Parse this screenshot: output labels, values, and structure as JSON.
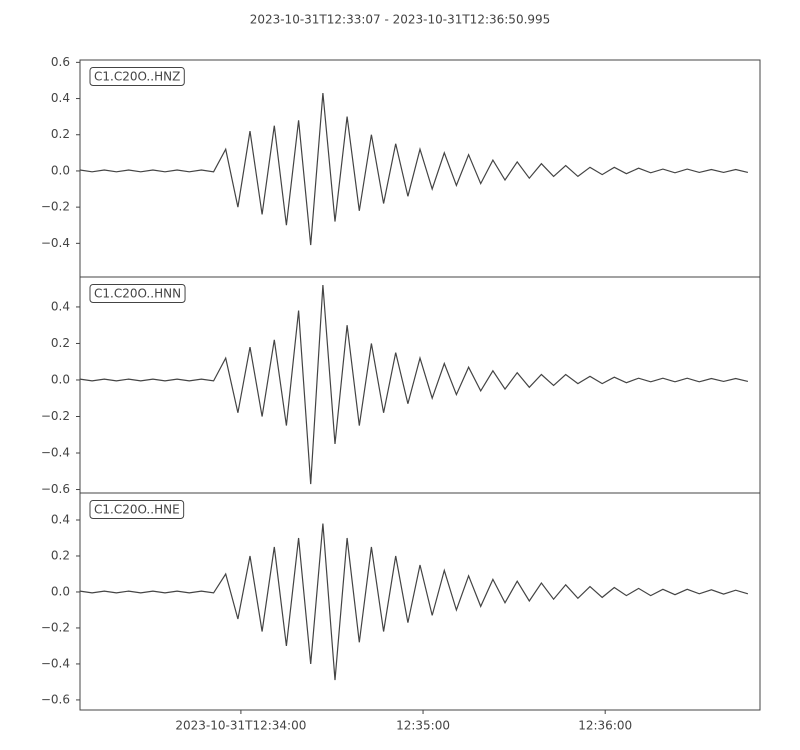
{
  "chart_data": [
    {
      "type": "line",
      "title": "2023-10-31T12:33:07  -  2023-10-31T12:36:50.995",
      "annotation": "C1.C20O..HNZ",
      "xlim": [
        "2023-10-31T12:33:07",
        "2023-10-31T12:36:50.995"
      ],
      "ylim": [
        -0.586,
        0.613
      ],
      "yticks": [
        {
          "value": -0.4,
          "label": "−0.4"
        },
        {
          "value": -0.2,
          "label": "−0.2"
        },
        {
          "value": 0,
          "label": "0.0"
        },
        0.2,
        0.4,
        0.6
      ],
      "x": [
        "2023-10-31T12:33:07",
        "2023-10-31T12:33:11",
        "2023-10-31T12:33:15",
        "2023-10-31T12:33:19",
        "2023-10-31T12:33:23",
        "2023-10-31T12:33:27",
        "2023-10-31T12:33:31",
        "2023-10-31T12:33:35",
        "2023-10-31T12:33:39",
        "2023-10-31T12:33:43",
        "2023-10-31T12:33:47",
        "2023-10-31T12:33:51",
        "2023-10-31T12:33:55",
        "2023-10-31T12:33:59",
        "2023-10-31T12:34:03",
        "2023-10-31T12:34:07",
        "2023-10-31T12:34:11",
        "2023-10-31T12:34:15",
        "2023-10-31T12:34:19",
        "2023-10-31T12:34:23",
        "2023-10-31T12:34:27",
        "2023-10-31T12:34:31",
        "2023-10-31T12:34:35",
        "2023-10-31T12:34:39",
        "2023-10-31T12:34:43",
        "2023-10-31T12:34:47",
        "2023-10-31T12:34:51",
        "2023-10-31T12:34:55",
        "2023-10-31T12:34:59",
        "2023-10-31T12:35:03",
        "2023-10-31T12:35:07",
        "2023-10-31T12:35:11",
        "2023-10-31T12:35:15",
        "2023-10-31T12:35:19",
        "2023-10-31T12:35:23",
        "2023-10-31T12:35:27",
        "2023-10-31T12:35:31",
        "2023-10-31T12:35:35",
        "2023-10-31T12:35:39",
        "2023-10-31T12:35:43",
        "2023-10-31T12:35:47",
        "2023-10-31T12:35:51",
        "2023-10-31T12:35:55",
        "2023-10-31T12:35:59",
        "2023-10-31T12:36:03",
        "2023-10-31T12:36:07",
        "2023-10-31T12:36:11",
        "2023-10-31T12:36:15",
        "2023-10-31T12:36:19",
        "2023-10-31T12:36:23",
        "2023-10-31T12:36:27",
        "2023-10-31T12:36:31",
        "2023-10-31T12:36:35",
        "2023-10-31T12:36:39",
        "2023-10-31T12:36:43",
        "2023-10-31T12:36:47"
      ],
      "series": [
        {
          "color": "#444444",
          "values": [
            0.005,
            -0.005,
            0.005,
            -0.005,
            0.005,
            -0.005,
            0.005,
            -0.005,
            0.005,
            -0.005,
            0.005,
            -0.005,
            0.12,
            -0.2,
            0.22,
            -0.24,
            0.25,
            -0.3,
            0.28,
            -0.41,
            0.43,
            -0.28,
            0.3,
            -0.22,
            0.2,
            -0.18,
            0.15,
            -0.14,
            0.12,
            -0.1,
            0.1,
            -0.08,
            0.09,
            -0.07,
            0.06,
            -0.05,
            0.05,
            -0.04,
            0.04,
            -0.03,
            0.03,
            -0.03,
            0.02,
            -0.02,
            0.02,
            -0.015,
            0.015,
            -0.01,
            0.01,
            -0.01,
            0.01,
            -0.008,
            0.008,
            -0.008,
            0.008,
            -0.008
          ]
        }
      ]
    },
    {
      "type": "line",
      "annotation": "C1.C20O..HNN",
      "xlim": [
        "2023-10-31T12:33:07",
        "2023-10-31T12:36:50.995"
      ],
      "ylim": [
        -0.619,
        0.564
      ],
      "yticks": [
        {
          "value": -0.6,
          "label": "−0.6"
        },
        {
          "value": -0.4,
          "label": "−0.4"
        },
        {
          "value": -0.2,
          "label": "−0.2"
        },
        {
          "value": 0,
          "label": "0.0"
        },
        0.2,
        0.4
      ],
      "x": [
        "2023-10-31T12:33:07",
        "2023-10-31T12:33:11",
        "2023-10-31T12:33:15",
        "2023-10-31T12:33:19",
        "2023-10-31T12:33:23",
        "2023-10-31T12:33:27",
        "2023-10-31T12:33:31",
        "2023-10-31T12:33:35",
        "2023-10-31T12:33:39",
        "2023-10-31T12:33:43",
        "2023-10-31T12:33:47",
        "2023-10-31T12:33:51",
        "2023-10-31T12:33:55",
        "2023-10-31T12:33:59",
        "2023-10-31T12:34:03",
        "2023-10-31T12:34:07",
        "2023-10-31T12:34:11",
        "2023-10-31T12:34:15",
        "2023-10-31T12:34:19",
        "2023-10-31T12:34:23",
        "2023-10-31T12:34:27",
        "2023-10-31T12:34:31",
        "2023-10-31T12:34:35",
        "2023-10-31T12:34:39",
        "2023-10-31T12:34:43",
        "2023-10-31T12:34:47",
        "2023-10-31T12:34:51",
        "2023-10-31T12:34:55",
        "2023-10-31T12:34:59",
        "2023-10-31T12:35:03",
        "2023-10-31T12:35:07",
        "2023-10-31T12:35:11",
        "2023-10-31T12:35:15",
        "2023-10-31T12:35:19",
        "2023-10-31T12:35:23",
        "2023-10-31T12:35:27",
        "2023-10-31T12:35:31",
        "2023-10-31T12:35:35",
        "2023-10-31T12:35:39",
        "2023-10-31T12:35:43",
        "2023-10-31T12:35:47",
        "2023-10-31T12:35:51",
        "2023-10-31T12:35:55",
        "2023-10-31T12:35:59",
        "2023-10-31T12:36:03",
        "2023-10-31T12:36:07",
        "2023-10-31T12:36:11",
        "2023-10-31T12:36:15",
        "2023-10-31T12:36:19",
        "2023-10-31T12:36:23",
        "2023-10-31T12:36:27",
        "2023-10-31T12:36:31",
        "2023-10-31T12:36:35",
        "2023-10-31T12:36:39",
        "2023-10-31T12:36:43",
        "2023-10-31T12:36:47"
      ],
      "series": [
        {
          "color": "#444444",
          "values": [
            0.005,
            -0.005,
            0.005,
            -0.005,
            0.005,
            -0.005,
            0.005,
            -0.005,
            0.005,
            -0.005,
            0.005,
            -0.005,
            0.12,
            -0.18,
            0.18,
            -0.2,
            0.22,
            -0.25,
            0.38,
            -0.57,
            0.52,
            -0.35,
            0.3,
            -0.25,
            0.2,
            -0.18,
            0.15,
            -0.13,
            0.12,
            -0.1,
            0.09,
            -0.08,
            0.07,
            -0.06,
            0.05,
            -0.05,
            0.04,
            -0.04,
            0.03,
            -0.03,
            0.03,
            -0.02,
            0.02,
            -0.02,
            0.015,
            -0.015,
            0.01,
            -0.01,
            0.01,
            -0.01,
            0.01,
            -0.01,
            0.008,
            -0.008,
            0.008,
            -0.008
          ]
        }
      ]
    },
    {
      "type": "line",
      "annotation": "C1.C20O..HNE",
      "xlim": [
        "2023-10-31T12:33:07",
        "2023-10-31T12:36:50.995"
      ],
      "xticks": [
        "2023-10-31T12:34:00",
        {
          "value": "2023-10-31T12:35:00",
          "label": "12:35:00"
        },
        {
          "value": "2023-10-31T12:36:00",
          "label": "12:36:00"
        }
      ],
      "ylim": [
        -0.656,
        0.55
      ],
      "yticks": [
        {
          "value": -0.6,
          "label": "−0.6"
        },
        {
          "value": -0.4,
          "label": "−0.4"
        },
        {
          "value": -0.2,
          "label": "−0.2"
        },
        {
          "value": 0,
          "label": "0.0"
        },
        0.2,
        0.4
      ],
      "x": [
        "2023-10-31T12:33:07",
        "2023-10-31T12:33:11",
        "2023-10-31T12:33:15",
        "2023-10-31T12:33:19",
        "2023-10-31T12:33:23",
        "2023-10-31T12:33:27",
        "2023-10-31T12:33:31",
        "2023-10-31T12:33:35",
        "2023-10-31T12:33:39",
        "2023-10-31T12:33:43",
        "2023-10-31T12:33:47",
        "2023-10-31T12:33:51",
        "2023-10-31T12:33:55",
        "2023-10-31T12:33:59",
        "2023-10-31T12:34:03",
        "2023-10-31T12:34:07",
        "2023-10-31T12:34:11",
        "2023-10-31T12:34:15",
        "2023-10-31T12:34:19",
        "2023-10-31T12:34:23",
        "2023-10-31T12:34:27",
        "2023-10-31T12:34:31",
        "2023-10-31T12:34:35",
        "2023-10-31T12:34:39",
        "2023-10-31T12:34:43",
        "2023-10-31T12:34:47",
        "2023-10-31T12:34:51",
        "2023-10-31T12:34:55",
        "2023-10-31T12:34:59",
        "2023-10-31T12:35:03",
        "2023-10-31T12:35:07",
        "2023-10-31T12:35:11",
        "2023-10-31T12:35:15",
        "2023-10-31T12:35:19",
        "2023-10-31T12:35:23",
        "2023-10-31T12:35:27",
        "2023-10-31T12:35:31",
        "2023-10-31T12:35:35",
        "2023-10-31T12:35:39",
        "2023-10-31T12:35:43",
        "2023-10-31T12:35:47",
        "2023-10-31T12:35:51",
        "2023-10-31T12:35:55",
        "2023-10-31T12:35:59",
        "2023-10-31T12:36:03",
        "2023-10-31T12:36:07",
        "2023-10-31T12:36:11",
        "2023-10-31T12:36:15",
        "2023-10-31T12:36:19",
        "2023-10-31T12:36:23",
        "2023-10-31T12:36:27",
        "2023-10-31T12:36:31",
        "2023-10-31T12:36:35",
        "2023-10-31T12:36:39",
        "2023-10-31T12:36:43",
        "2023-10-31T12:36:47"
      ],
      "series": [
        {
          "color": "#444444",
          "values": [
            0.005,
            -0.005,
            0.005,
            -0.005,
            0.005,
            -0.005,
            0.005,
            -0.005,
            0.005,
            -0.005,
            0.005,
            -0.005,
            0.1,
            -0.15,
            0.2,
            -0.22,
            0.25,
            -0.3,
            0.3,
            -0.4,
            0.38,
            -0.49,
            0.3,
            -0.28,
            0.25,
            -0.22,
            0.2,
            -0.17,
            0.15,
            -0.13,
            0.12,
            -0.1,
            0.09,
            -0.08,
            0.07,
            -0.06,
            0.06,
            -0.05,
            0.05,
            -0.04,
            0.04,
            -0.035,
            0.03,
            -0.03,
            0.025,
            -0.02,
            0.02,
            -0.02,
            0.015,
            -0.015,
            0.015,
            -0.01,
            0.012,
            -0.012,
            0.01,
            -0.01
          ]
        }
      ]
    }
  ]
}
